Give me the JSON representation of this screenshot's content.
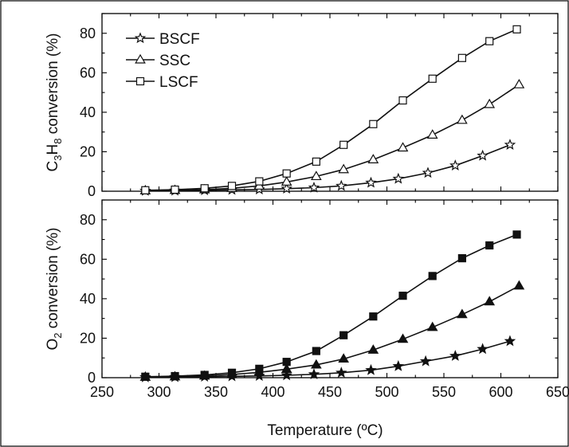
{
  "figure": {
    "xlabel": "Temperature (ºC)",
    "colors": {
      "ink": "#111111",
      "frame": "#000000",
      "background": "#ffffff"
    }
  },
  "chart_data": [
    {
      "type": "line",
      "panel": "top",
      "ylabel_parts": [
        "C",
        "3",
        "H",
        "8",
        " conversion (%)"
      ],
      "xlim": [
        250,
        650
      ],
      "ylim": [
        0,
        90
      ],
      "xticks": [
        250,
        300,
        350,
        400,
        450,
        500,
        550,
        600,
        650
      ],
      "yticks": [
        0,
        20,
        40,
        60,
        80
      ],
      "grid": false,
      "legend_position": "top-left",
      "series": [
        {
          "name": "BSCF",
          "marker": "star-open",
          "x": [
            288,
            314,
            340,
            364,
            388,
            412,
            436,
            460,
            486,
            510,
            536,
            560,
            584,
            608
          ],
          "y": [
            0.2,
            0.3,
            0.5,
            0.7,
            0.9,
            1.3,
            1.8,
            2.7,
            4.3,
            6.3,
            9.3,
            13.0,
            18.0,
            23.5
          ]
        },
        {
          "name": "SSC",
          "marker": "triangle-open",
          "x": [
            288,
            314,
            340,
            364,
            388,
            412,
            438,
            462,
            488,
            514,
            540,
            566,
            590,
            616
          ],
          "y": [
            0.3,
            0.5,
            0.8,
            1.5,
            2.7,
            4.7,
            7.5,
            11.0,
            16.0,
            22.0,
            28.5,
            36.0,
            44.0,
            54.0
          ]
        },
        {
          "name": "LSCF",
          "marker": "square-open",
          "x": [
            288,
            314,
            340,
            364,
            388,
            412,
            438,
            462,
            488,
            514,
            540,
            566,
            590,
            614
          ],
          "y": [
            0.5,
            0.8,
            1.5,
            2.7,
            5.0,
            9.0,
            15.0,
            23.5,
            34.0,
            46.0,
            57.0,
            67.5,
            76.0,
            82.0
          ]
        }
      ]
    },
    {
      "type": "line",
      "panel": "bottom",
      "ylabel_parts": [
        "O",
        "2",
        " conversion (%)"
      ],
      "xlim": [
        250,
        650
      ],
      "ylim": [
        0,
        90
      ],
      "xticks": [
        250,
        300,
        350,
        400,
        450,
        500,
        550,
        600,
        650
      ],
      "xtick_labels": [
        "250",
        "300",
        "350",
        "400",
        "450",
        "500",
        "550",
        "600",
        "650"
      ],
      "yticks": [
        0,
        20,
        40,
        60,
        80
      ],
      "grid": false,
      "series": [
        {
          "name": "BSCF",
          "marker": "star-filled",
          "x": [
            288,
            314,
            340,
            364,
            388,
            412,
            436,
            460,
            486,
            510,
            534,
            560,
            584,
            608
          ],
          "y": [
            0.2,
            0.3,
            0.5,
            0.7,
            0.9,
            1.2,
            1.7,
            2.5,
            3.8,
            5.8,
            8.3,
            11.0,
            14.5,
            18.5
          ]
        },
        {
          "name": "SSC",
          "marker": "triangle-filled",
          "x": [
            288,
            314,
            340,
            364,
            388,
            412,
            438,
            462,
            488,
            514,
            540,
            566,
            590,
            616
          ],
          "y": [
            0.3,
            0.5,
            0.9,
            1.6,
            2.7,
            4.3,
            6.5,
            9.5,
            14.0,
            19.5,
            25.5,
            32.0,
            38.5,
            46.5
          ]
        },
        {
          "name": "LSCF",
          "marker": "square-filled",
          "x": [
            288,
            314,
            340,
            364,
            388,
            412,
            438,
            462,
            488,
            514,
            540,
            566,
            590,
            614
          ],
          "y": [
            0.5,
            0.8,
            1.4,
            2.5,
            4.5,
            8.0,
            13.5,
            21.5,
            31.0,
            41.5,
            51.5,
            60.5,
            67.0,
            72.5
          ]
        }
      ]
    }
  ]
}
